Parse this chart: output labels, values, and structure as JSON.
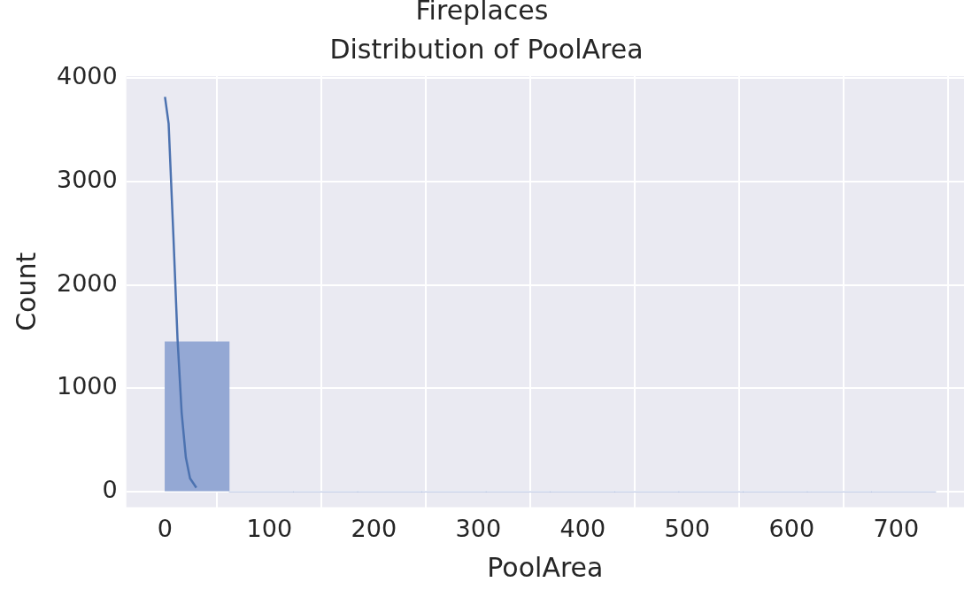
{
  "chart_data": {
    "type": "histogram",
    "title": "Distribution of PoolArea",
    "xlabel": "PoolArea",
    "ylabel": "Count",
    "annotations": [
      "Fireplaces"
    ],
    "bins": [
      0,
      61.5,
      123,
      184.5,
      246,
      307.5,
      369,
      430.5,
      492,
      553.5,
      615,
      676.5,
      738
    ],
    "values": [
      1450,
      0,
      0,
      0,
      0,
      0,
      0,
      0,
      0,
      0,
      0,
      0
    ],
    "color": "#94a8d4",
    "series": [
      {
        "type": "line",
        "color": "#4c72b0",
        "x": [
          0,
          3.5,
          8,
          12,
          16,
          20,
          24,
          30
        ],
        "values": [
          3820,
          3560,
          2490,
          1480,
          760,
          330,
          130,
          40
        ]
      }
    ],
    "xlim": [
      -37,
      765
    ],
    "xticks": [
      0,
      100,
      200,
      300,
      400,
      500,
      600,
      700
    ],
    "ylim": [
      -150,
      4020
    ],
    "yticks": [
      0,
      1000,
      2000,
      3000,
      4000
    ],
    "grid": true,
    "marker": "none"
  }
}
